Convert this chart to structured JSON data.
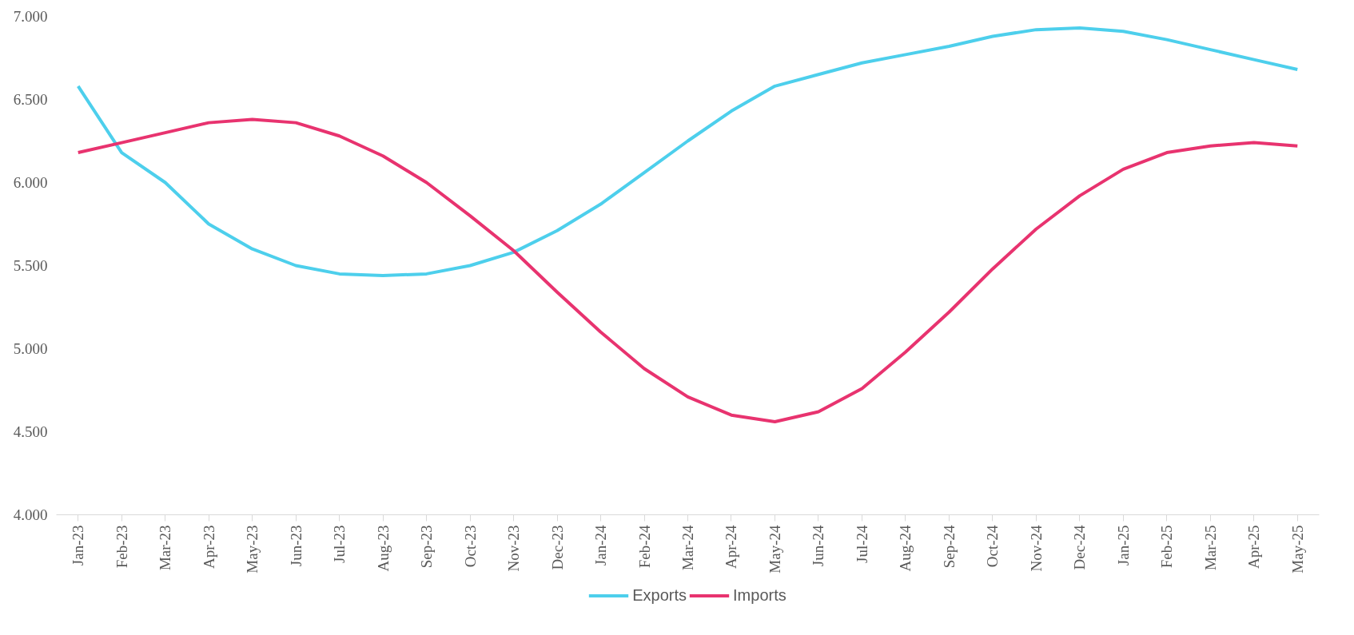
{
  "chart_data": {
    "type": "line",
    "categories": [
      "Jan-23",
      "Feb-23",
      "Mar-23",
      "Apr-23",
      "May-23",
      "Jun-23",
      "Jul-23",
      "Aug-23",
      "Sep-23",
      "Oct-23",
      "Nov-23",
      "Dec-23",
      "Jan-24",
      "Feb-24",
      "Mar-24",
      "Apr-24",
      "May-24",
      "Jun-24",
      "Jul-24",
      "Aug-24",
      "Sep-24",
      "Oct-24",
      "Nov-24",
      "Dec-24",
      "Jan-25",
      "Feb-25",
      "Mar-25",
      "Apr-25",
      "May-25"
    ],
    "series": [
      {
        "name": "Exports",
        "color": "#4dcfec",
        "values": [
          6580,
          6180,
          6000,
          5750,
          5600,
          5500,
          5450,
          5440,
          5450,
          5500,
          5580,
          5710,
          5870,
          6060,
          6250,
          6430,
          6580,
          6650,
          6720,
          6770,
          6820,
          6880,
          6920,
          6930,
          6910,
          6860,
          6800,
          6740,
          6680
        ]
      },
      {
        "name": "Imports",
        "color": "#e8336f",
        "values": [
          6180,
          6240,
          6300,
          6360,
          6380,
          6360,
          6280,
          6160,
          6000,
          5800,
          5590,
          5340,
          5100,
          4880,
          4710,
          4600,
          4560,
          4620,
          4760,
          4980,
          5220,
          5480,
          5720,
          5920,
          6080,
          6180,
          6220,
          6240,
          6220
        ]
      }
    ],
    "ylim": [
      4000,
      7000
    ],
    "yticks": [
      {
        "value": 4000,
        "label": "4.000"
      },
      {
        "value": 4500,
        "label": "4.500"
      },
      {
        "value": 5000,
        "label": "5.000"
      },
      {
        "value": 5500,
        "label": "5.500"
      },
      {
        "value": 6000,
        "label": "6.000"
      },
      {
        "value": 6500,
        "label": "6.500"
      },
      {
        "value": 7000,
        "label": "7.000"
      }
    ],
    "grid": false,
    "legend": "bottom",
    "marker": "none",
    "line_style": "solid"
  }
}
